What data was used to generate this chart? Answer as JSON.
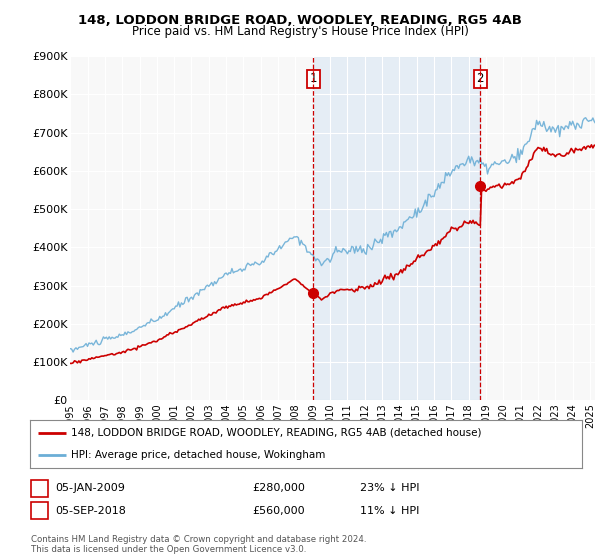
{
  "title": "148, LODDON BRIDGE ROAD, WOODLEY, READING, RG5 4AB",
  "subtitle": "Price paid vs. HM Land Registry's House Price Index (HPI)",
  "ylim": [
    0,
    900000
  ],
  "yticks": [
    0,
    100000,
    200000,
    300000,
    400000,
    500000,
    600000,
    700000,
    800000,
    900000
  ],
  "ytick_labels": [
    "£0",
    "£100K",
    "£200K",
    "£300K",
    "£400K",
    "£500K",
    "£600K",
    "£700K",
    "£800K",
    "£900K"
  ],
  "hpi_color": "#6baed6",
  "price_color": "#cc0000",
  "vline_color": "#cc0000",
  "shade_color": "#ddeeff",
  "plot_bg": "#f0f0f0",
  "legend_label_red": "148, LODDON BRIDGE ROAD, WOODLEY, READING, RG5 4AB (detached house)",
  "legend_label_blue": "HPI: Average price, detached house, Wokingham",
  "note1_date": "05-JAN-2009",
  "note1_price": "£280,000",
  "note1_pct": "23% ↓ HPI",
  "note2_date": "05-SEP-2018",
  "note2_price": "£560,000",
  "note2_pct": "11% ↓ HPI",
  "copyright": "Contains HM Land Registry data © Crown copyright and database right 2024.\nThis data is licensed under the Open Government Licence v3.0.",
  "purchase1_year": 2009.04,
  "purchase1_price": 280000,
  "purchase2_year": 2018.67,
  "purchase2_price": 560000,
  "xlim_left": 1995.0,
  "xlim_right": 2025.3
}
